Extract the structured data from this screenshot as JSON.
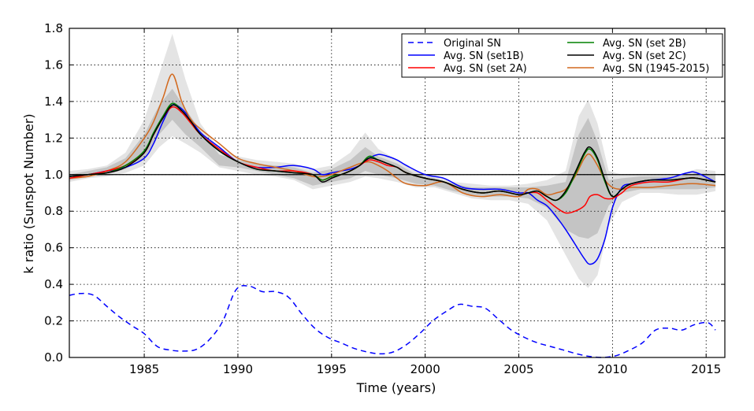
{
  "chart_data": {
    "type": "line",
    "title": "",
    "xlabel": "Time (years)",
    "ylabel": "k ratio (Sunspot Number)",
    "xlim": [
      1981,
      2016
    ],
    "ylim": [
      0.0,
      1.8
    ],
    "grid": true,
    "x_ticks": [
      1985,
      1990,
      1995,
      2000,
      2005,
      2010,
      2015
    ],
    "x_tick_labels": [
      "1985",
      "1990",
      "1995",
      "2000",
      "2005",
      "2010",
      "2015"
    ],
    "y_ticks": [
      0.0,
      0.2,
      0.4,
      0.6,
      0.8,
      1.0,
      1.2,
      1.4,
      1.6,
      1.8
    ],
    "y_tick_labels": [
      "0.0",
      "0.2",
      "0.4",
      "0.6",
      "0.8",
      "1.0",
      "1.2",
      "1.4",
      "1.6",
      "1.8"
    ],
    "reference_line": {
      "y": 1.0,
      "color": "#000000"
    },
    "legend": {
      "position": "top-right",
      "columns": 2,
      "order": [
        "original",
        "set1b",
        "set2a",
        "set2b",
        "set2c",
        "y1945"
      ]
    },
    "bands": [
      {
        "name": "outer-band",
        "color": "#e4e4e4",
        "x": [
          1981,
          1982,
          1983,
          1984,
          1985,
          1985.8,
          1986.5,
          1987.2,
          1988,
          1989,
          1990,
          1991,
          1992,
          1993,
          1994,
          1995,
          1996,
          1996.8,
          1997.5,
          1998.5,
          1999.5,
          2000.5,
          2001.5,
          2002.5,
          2003.5,
          2004.5,
          2005.5,
          2006.5,
          2007.5,
          2008.2,
          2008.7,
          2009.2,
          2009.8,
          2010.5,
          2011.5,
          2012.5,
          2013.5,
          2014.5,
          2015.5
        ],
        "upper": [
          1.02,
          1.03,
          1.05,
          1.12,
          1.3,
          1.55,
          1.77,
          1.52,
          1.28,
          1.14,
          1.1,
          1.08,
          1.07,
          1.06,
          1.03,
          1.05,
          1.12,
          1.23,
          1.14,
          1.08,
          1.02,
          0.99,
          0.96,
          0.95,
          0.94,
          0.94,
          0.95,
          0.97,
          1.02,
          1.32,
          1.41,
          1.28,
          1.02,
          1.0,
          1.0,
          1.0,
          1.0,
          1.03,
          1.02
        ],
        "lower": [
          0.96,
          0.98,
          0.99,
          1.01,
          1.05,
          1.15,
          1.21,
          1.17,
          1.12,
          1.04,
          1.02,
          1.0,
          0.99,
          0.97,
          0.92,
          0.94,
          0.96,
          0.99,
          0.98,
          0.96,
          0.93,
          0.93,
          0.9,
          0.87,
          0.86,
          0.86,
          0.84,
          0.75,
          0.56,
          0.43,
          0.38,
          0.45,
          0.72,
          0.85,
          0.9,
          0.9,
          0.89,
          0.89,
          0.91
        ]
      },
      {
        "name": "middle-band",
        "color": "#c4c4c4",
        "x": [
          1981,
          1982,
          1983,
          1984,
          1985,
          1985.8,
          1986.5,
          1987.2,
          1988,
          1989,
          1990,
          1991,
          1992,
          1993,
          1994,
          1995,
          1996,
          1996.8,
          1997.5,
          1998.5,
          1999.5,
          2000.5,
          2001.5,
          2002.5,
          2003.5,
          2004.5,
          2005.5,
          2006.5,
          2007.5,
          2008.2,
          2008.7,
          2009.2,
          2009.8,
          2010.5,
          2011.5,
          2012.5,
          2013.5,
          2014.5,
          2015.5
        ],
        "upper": [
          1.0,
          1.02,
          1.04,
          1.09,
          1.22,
          1.38,
          1.47,
          1.36,
          1.24,
          1.11,
          1.08,
          1.06,
          1.05,
          1.04,
          1.01,
          1.03,
          1.08,
          1.15,
          1.1,
          1.06,
          1.0,
          0.98,
          0.95,
          0.93,
          0.93,
          0.93,
          0.93,
          0.94,
          0.96,
          1.22,
          1.31,
          1.18,
          0.97,
          0.98,
          0.99,
          0.99,
          0.99,
          1.01,
          1.0
        ],
        "lower": [
          0.97,
          0.99,
          1.0,
          1.03,
          1.09,
          1.22,
          1.3,
          1.22,
          1.15,
          1.05,
          1.04,
          1.02,
          1.0,
          0.98,
          0.94,
          0.96,
          0.98,
          1.02,
          1.0,
          0.98,
          0.95,
          0.94,
          0.91,
          0.89,
          0.88,
          0.88,
          0.87,
          0.82,
          0.7,
          0.66,
          0.65,
          0.68,
          0.83,
          0.9,
          0.92,
          0.92,
          0.92,
          0.92,
          0.93
        ]
      }
    ],
    "series": [
      {
        "key": "original",
        "name": "Original SN",
        "color": "#0000ff",
        "style": "dashed",
        "x": [
          1981,
          1981.6,
          1982.3,
          1983,
          1983.7,
          1984.4,
          1985,
          1985.7,
          1986.4,
          1987.1,
          1987.8,
          1988.5,
          1989.2,
          1989.9,
          1990.6,
          1991.3,
          1992,
          1992.7,
          1993.4,
          1994.1,
          1994.8,
          1995.5,
          1996.2,
          1996.9,
          1997.6,
          1998.3,
          1999,
          1999.7,
          2000.4,
          2001.1,
          2001.8,
          2002.5,
          2003.2,
          2003.9,
          2004.6,
          2005.3,
          2006,
          2006.7,
          2007.4,
          2008.1,
          2008.8,
          2009.5,
          2010.2,
          2010.9,
          2011.6,
          2012.3,
          2013,
          2013.7,
          2014.4,
          2015.1,
          2015.5
        ],
        "values": [
          0.34,
          0.35,
          0.34,
          0.28,
          0.22,
          0.17,
          0.13,
          0.06,
          0.04,
          0.035,
          0.045,
          0.1,
          0.2,
          0.37,
          0.39,
          0.36,
          0.36,
          0.33,
          0.24,
          0.16,
          0.11,
          0.08,
          0.05,
          0.03,
          0.02,
          0.03,
          0.07,
          0.13,
          0.2,
          0.25,
          0.29,
          0.28,
          0.27,
          0.21,
          0.15,
          0.11,
          0.08,
          0.06,
          0.04,
          0.02,
          0.005,
          0.0,
          0.01,
          0.04,
          0.08,
          0.15,
          0.16,
          0.15,
          0.18,
          0.19,
          0.15
        ]
      },
      {
        "key": "set1b",
        "name": "Avg. SN (set1B)",
        "color": "#0000ff",
        "style": "solid",
        "x": [
          1981,
          1982,
          1983,
          1984,
          1985,
          1985.5,
          1986,
          1986.5,
          1987,
          1987.5,
          1988,
          1989,
          1990,
          1991,
          1992,
          1993,
          1994,
          1994.5,
          1995,
          1995.5,
          1996,
          1996.5,
          1997,
          1997.5,
          1998,
          1998.5,
          1999,
          2000,
          2001,
          2002,
          2003,
          2004,
          2005,
          2005.5,
          2006,
          2006.5,
          2007,
          2007.5,
          2008,
          2008.5,
          2008.8,
          2009.2,
          2009.6,
          2010,
          2010.5,
          2011,
          2012,
          2013,
          2014,
          2014.5,
          2015.5
        ],
        "values": [
          0.99,
          1.0,
          1.02,
          1.04,
          1.09,
          1.17,
          1.29,
          1.38,
          1.36,
          1.3,
          1.23,
          1.15,
          1.07,
          1.04,
          1.04,
          1.05,
          1.03,
          1.0,
          1.01,
          1.02,
          1.03,
          1.05,
          1.09,
          1.11,
          1.1,
          1.08,
          1.05,
          1.0,
          0.98,
          0.93,
          0.92,
          0.92,
          0.9,
          0.9,
          0.86,
          0.83,
          0.77,
          0.7,
          0.62,
          0.54,
          0.51,
          0.54,
          0.65,
          0.82,
          0.93,
          0.95,
          0.97,
          0.98,
          1.01,
          1.01,
          0.96
        ]
      },
      {
        "key": "set2a",
        "name": "Avg. SN (set 2A)",
        "color": "#ff0000",
        "style": "solid",
        "x": [
          1981,
          1982,
          1983,
          1984,
          1985,
          1985.5,
          1986,
          1986.5,
          1987,
          1987.5,
          1988,
          1989,
          1990,
          1991,
          1992,
          1993,
          1994,
          1994.5,
          1995,
          1995.5,
          1996,
          1996.5,
          1997,
          1997.5,
          1998,
          1998.5,
          1999,
          2000,
          2001,
          2002,
          2003,
          2004,
          2005,
          2005.5,
          2006,
          2006.5,
          2007,
          2007.5,
          2008,
          2008.5,
          2008.8,
          2009.2,
          2009.6,
          2010,
          2010.5,
          2011,
          2012,
          2013,
          2014,
          2014.5,
          2015.5
        ],
        "values": [
          0.98,
          1.0,
          1.02,
          1.05,
          1.12,
          1.22,
          1.31,
          1.37,
          1.34,
          1.28,
          1.22,
          1.14,
          1.07,
          1.04,
          1.02,
          1.02,
          1.0,
          0.97,
          0.99,
          1.0,
          1.02,
          1.05,
          1.08,
          1.07,
          1.05,
          1.04,
          1.01,
          0.98,
          0.96,
          0.92,
          0.9,
          0.91,
          0.89,
          0.9,
          0.9,
          0.86,
          0.82,
          0.79,
          0.8,
          0.83,
          0.88,
          0.89,
          0.87,
          0.87,
          0.9,
          0.94,
          0.96,
          0.96,
          0.98,
          0.98,
          0.96
        ]
      },
      {
        "key": "set2b",
        "name": "Avg. SN (set 2B)",
        "color": "#008000",
        "style": "solid",
        "x": [
          1981,
          1982,
          1983,
          1984,
          1985,
          1985.5,
          1986,
          1986.5,
          1987,
          1987.5,
          1988,
          1989,
          1990,
          1991,
          1992,
          1993,
          1994,
          1994.5,
          1995,
          1995.5,
          1996,
          1996.5,
          1997,
          1997.5,
          1998,
          1998.5,
          1999,
          2000,
          2001,
          2002,
          2003,
          2004,
          2005,
          2005.5,
          2006,
          2006.5,
          2007,
          2007.5,
          2008,
          2008.5,
          2008.8,
          2009.2,
          2009.6,
          2010,
          2010.5,
          2011,
          2012,
          2013,
          2014,
          2014.5,
          2015.5
        ],
        "values": [
          0.99,
          1.0,
          1.01,
          1.05,
          1.13,
          1.23,
          1.32,
          1.39,
          1.35,
          1.29,
          1.22,
          1.13,
          1.07,
          1.03,
          1.02,
          1.01,
          1.0,
          0.97,
          0.99,
          1.0,
          1.02,
          1.05,
          1.1,
          1.08,
          1.06,
          1.04,
          1.01,
          0.98,
          0.96,
          0.92,
          0.9,
          0.91,
          0.89,
          0.9,
          0.91,
          0.88,
          0.86,
          0.9,
          1.0,
          1.11,
          1.14,
          1.08,
          0.96,
          0.88,
          0.92,
          0.95,
          0.97,
          0.97,
          0.98,
          0.98,
          0.96
        ]
      },
      {
        "key": "set2c",
        "name": "Avg. SN (set 2C)",
        "color": "#000000",
        "style": "solid",
        "x": [
          1981,
          1982,
          1983,
          1984,
          1985,
          1985.5,
          1986,
          1986.5,
          1987,
          1987.5,
          1988,
          1989,
          1990,
          1991,
          1992,
          1993,
          1994,
          1994.5,
          1995,
          1995.5,
          1996,
          1996.5,
          1997,
          1997.5,
          1998,
          1998.5,
          1999,
          2000,
          2001,
          2002,
          2003,
          2004,
          2005,
          2005.5,
          2006,
          2006.5,
          2007,
          2007.5,
          2008,
          2008.5,
          2008.8,
          2009.2,
          2009.6,
          2010,
          2010.5,
          2011,
          2012,
          2013,
          2014,
          2014.5,
          2015.5
        ],
        "values": [
          0.99,
          1.0,
          1.01,
          1.04,
          1.12,
          1.22,
          1.31,
          1.38,
          1.35,
          1.29,
          1.22,
          1.13,
          1.07,
          1.03,
          1.02,
          1.01,
          1.0,
          0.96,
          0.98,
          1.0,
          1.02,
          1.05,
          1.09,
          1.08,
          1.06,
          1.04,
          1.01,
          0.98,
          0.96,
          0.92,
          0.9,
          0.91,
          0.89,
          0.9,
          0.91,
          0.88,
          0.86,
          0.91,
          1.01,
          1.12,
          1.15,
          1.09,
          0.97,
          0.88,
          0.92,
          0.95,
          0.97,
          0.97,
          0.98,
          0.98,
          0.96
        ]
      },
      {
        "key": "y1945",
        "name": "Avg. SN (1945-2015)",
        "color": "#d2691e",
        "style": "solid",
        "x": [
          1981,
          1982,
          1983,
          1984,
          1985,
          1985.5,
          1986,
          1986.5,
          1987,
          1987.5,
          1988,
          1989,
          1990,
          1991,
          1992,
          1993,
          1994,
          1994.5,
          1995,
          1995.5,
          1996,
          1996.5,
          1997,
          1997.5,
          1998,
          1998.5,
          1999,
          2000,
          2001,
          2002,
          2003,
          2004,
          2005,
          2005.5,
          2006,
          2006.5,
          2007,
          2007.5,
          2008,
          2008.5,
          2008.8,
          2009.2,
          2009.6,
          2010,
          2010.5,
          2011,
          2012,
          2013,
          2014,
          2014.5,
          2015.5
        ],
        "values": [
          0.98,
          0.99,
          1.02,
          1.07,
          1.2,
          1.29,
          1.42,
          1.55,
          1.4,
          1.3,
          1.25,
          1.17,
          1.09,
          1.06,
          1.04,
          1.02,
          0.99,
          0.99,
          1.0,
          1.02,
          1.04,
          1.06,
          1.07,
          1.05,
          1.02,
          0.98,
          0.95,
          0.94,
          0.96,
          0.9,
          0.88,
          0.89,
          0.88,
          0.92,
          0.92,
          0.89,
          0.9,
          0.92,
          0.99,
          1.09,
          1.11,
          1.05,
          0.97,
          0.93,
          0.92,
          0.93,
          0.93,
          0.94,
          0.95,
          0.95,
          0.94
        ]
      }
    ]
  }
}
